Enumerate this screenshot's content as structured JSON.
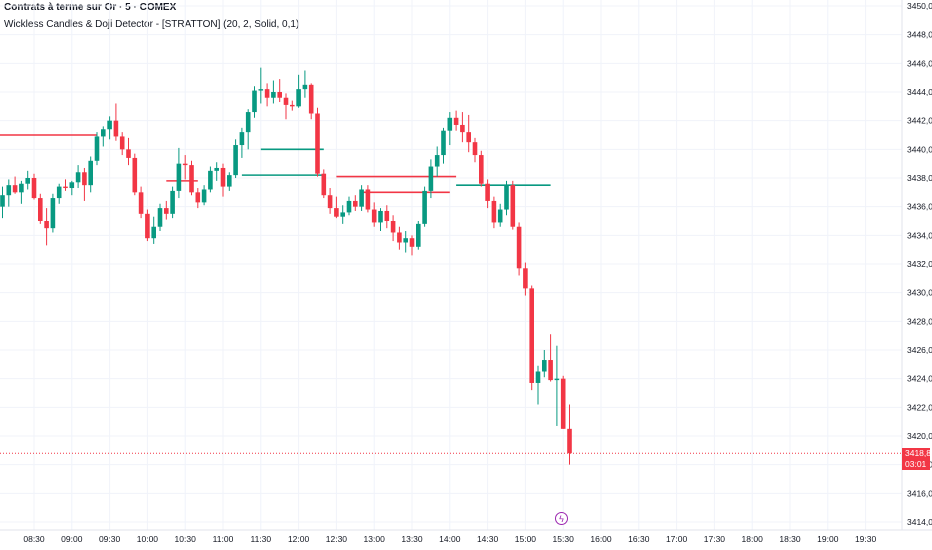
{
  "header": {
    "title": "Contrats à terme sur Or · 5 · COMEX",
    "indicator": "Wickless Candles & Doji Detector - [STRATTON] (20, 2, Solid, 0,1)"
  },
  "price_tag": {
    "price": "3418,8",
    "countdown": "03:01"
  },
  "event_icon": "lightning-icon",
  "colors": {
    "up": "#089981",
    "down": "#f23645",
    "grid": "#f0f3fa",
    "axis_text": "#131722",
    "current_line": "#f23645"
  },
  "chart_data": {
    "type": "candlestick",
    "title": "",
    "interval": "5",
    "x_ticks": [
      "08:30",
      "09:00",
      "09:30",
      "10:00",
      "10:30",
      "11:00",
      "11:30",
      "12:00",
      "12:30",
      "13:00",
      "13:30",
      "14:00",
      "14:30",
      "15:00",
      "15:30",
      "16:00",
      "16:30",
      "17:00",
      "17:30",
      "18:00",
      "18:30",
      "19:00",
      "19:30"
    ],
    "y_ticks": [
      "3450,0",
      "3448,0",
      "3446,0",
      "3444,0",
      "3442,0",
      "3440,0",
      "3438,0",
      "3436,0",
      "3434,0",
      "3432,0",
      "3430,0",
      "3428,0",
      "3426,0",
      "3424,0",
      "3422,0",
      "3420,0",
      "3418,0",
      "3416,0",
      "3414,0"
    ],
    "ylim": [
      3414.0,
      3450.0
    ],
    "current_price": 3418.8,
    "first_bar_time": "08:05",
    "candles": [
      [
        3436.0,
        3437.4,
        3435.2,
        3436.8
      ],
      [
        3436.8,
        3437.9,
        3436.0,
        3437.5
      ],
      [
        3437.5,
        3438.1,
        3436.9,
        3437.0
      ],
      [
        3437.0,
        3437.8,
        3436.2,
        3437.6
      ],
      [
        3437.6,
        3438.5,
        3437.2,
        3438.0
      ],
      [
        3438.0,
        3438.3,
        3436.5,
        3436.6
      ],
      [
        3436.6,
        3436.9,
        3434.8,
        3435.0
      ],
      [
        3435.0,
        3435.9,
        3433.3,
        3434.5
      ],
      [
        3434.5,
        3436.9,
        3434.2,
        3436.6
      ],
      [
        3436.6,
        3437.6,
        3436.2,
        3437.4
      ],
      [
        3437.4,
        3437.9,
        3437.1,
        3437.3
      ],
      [
        3437.3,
        3437.8,
        3436.8,
        3437.7
      ],
      [
        3437.7,
        3438.9,
        3437.3,
        3438.4
      ],
      [
        3438.4,
        3438.7,
        3436.4,
        3437.5
      ],
      [
        3437.5,
        3439.5,
        3437.0,
        3439.2
      ],
      [
        3439.2,
        3441.2,
        3438.9,
        3440.9
      ],
      [
        3440.9,
        3441.6,
        3440.2,
        3441.4
      ],
      [
        3441.4,
        3442.3,
        3440.7,
        3442.0
      ],
      [
        3442.0,
        3443.2,
        3440.6,
        3440.9
      ],
      [
        3440.9,
        3441.2,
        3439.6,
        3440.0
      ],
      [
        3440.0,
        3440.8,
        3438.9,
        3439.4
      ],
      [
        3439.4,
        3439.7,
        3436.8,
        3437.0
      ],
      [
        3437.0,
        3437.4,
        3435.2,
        3435.5
      ],
      [
        3435.5,
        3435.8,
        3433.6,
        3433.8
      ],
      [
        3433.8,
        3435.3,
        3433.4,
        3434.6
      ],
      [
        3434.6,
        3436.2,
        3434.3,
        3435.9
      ],
      [
        3435.9,
        3436.4,
        3435.1,
        3435.5
      ],
      [
        3435.5,
        3437.4,
        3435.2,
        3437.1
      ],
      [
        3437.1,
        3440.1,
        3436.6,
        3439.0
      ],
      [
        3439.0,
        3439.6,
        3437.9,
        3438.9
      ],
      [
        3438.9,
        3439.2,
        3436.8,
        3437.0
      ],
      [
        3437.0,
        3437.3,
        3435.9,
        3436.3
      ],
      [
        3436.3,
        3437.5,
        3436.1,
        3437.2
      ],
      [
        3437.2,
        3438.8,
        3437.0,
        3438.5
      ],
      [
        3438.5,
        3439.1,
        3437.8,
        3438.7
      ],
      [
        3438.7,
        3439.0,
        3436.7,
        3437.4
      ],
      [
        3437.4,
        3438.4,
        3437.1,
        3438.2
      ],
      [
        3438.2,
        3440.7,
        3438.0,
        3440.3
      ],
      [
        3440.3,
        3441.5,
        3439.4,
        3441.2
      ],
      [
        3441.2,
        3442.8,
        3440.0,
        3442.6
      ],
      [
        3442.6,
        3444.4,
        3442.2,
        3444.1
      ],
      [
        3444.1,
        3445.7,
        3443.2,
        3444.2
      ],
      [
        3444.2,
        3444.6,
        3443.0,
        3443.6
      ],
      [
        3443.6,
        3444.8,
        3443.2,
        3444.0
      ],
      [
        3444.0,
        3444.9,
        3443.3,
        3443.6
      ],
      [
        3443.6,
        3443.9,
        3442.1,
        3443.1
      ],
      [
        3443.1,
        3443.4,
        3442.7,
        3443.0
      ],
      [
        3443.0,
        3445.2,
        3442.9,
        3444.2
      ],
      [
        3444.2,
        3445.5,
        3443.6,
        3444.5
      ],
      [
        3444.5,
        3444.6,
        3442.1,
        3442.5
      ],
      [
        3442.5,
        3442.9,
        3438.1,
        3438.3
      ],
      [
        3438.3,
        3438.6,
        3436.6,
        3436.8
      ],
      [
        3436.8,
        3437.3,
        3435.5,
        3435.9
      ],
      [
        3435.9,
        3436.7,
        3435.2,
        3435.3
      ],
      [
        3435.3,
        3436.1,
        3434.8,
        3435.6
      ],
      [
        3435.6,
        3436.7,
        3435.4,
        3436.4
      ],
      [
        3436.4,
        3436.8,
        3435.7,
        3436.0
      ],
      [
        3436.0,
        3437.5,
        3435.7,
        3437.2
      ],
      [
        3437.2,
        3437.5,
        3435.6,
        3435.8
      ],
      [
        3435.8,
        3436.3,
        3434.6,
        3434.9
      ],
      [
        3434.9,
        3435.9,
        3434.3,
        3435.7
      ],
      [
        3435.7,
        3436.1,
        3434.5,
        3435.0
      ],
      [
        3435.0,
        3435.4,
        3433.6,
        3434.2
      ],
      [
        3434.2,
        3434.6,
        3433.0,
        3433.5
      ],
      [
        3433.5,
        3434.3,
        3432.8,
        3433.8
      ],
      [
        3433.8,
        3434.0,
        3432.6,
        3433.2
      ],
      [
        3433.2,
        3435.0,
        3433.0,
        3434.8
      ],
      [
        3434.8,
        3437.4,
        3434.6,
        3437.1
      ],
      [
        3437.1,
        3439.3,
        3436.6,
        3438.8
      ],
      [
        3438.8,
        3440.2,
        3438.1,
        3439.6
      ],
      [
        3439.6,
        3441.5,
        3439.0,
        3441.3
      ],
      [
        3441.3,
        3442.6,
        3440.3,
        3442.2
      ],
      [
        3442.2,
        3442.7,
        3441.3,
        3441.7
      ],
      [
        3441.7,
        3442.6,
        3440.5,
        3441.2
      ],
      [
        3441.2,
        3442.4,
        3439.8,
        3440.5
      ],
      [
        3440.5,
        3440.8,
        3439.1,
        3439.6
      ],
      [
        3439.6,
        3439.9,
        3437.4,
        3437.6
      ],
      [
        3437.6,
        3437.9,
        3435.9,
        3436.4
      ],
      [
        3436.4,
        3436.7,
        3434.5,
        3434.9
      ],
      [
        3434.9,
        3436.2,
        3434.6,
        3435.8
      ],
      [
        3435.8,
        3437.8,
        3435.4,
        3437.5
      ],
      [
        3437.5,
        3437.8,
        3434.4,
        3434.6
      ],
      [
        3434.6,
        3434.9,
        3431.2,
        3431.7
      ],
      [
        3431.7,
        3432.1,
        3429.8,
        3430.3
      ],
      [
        3430.3,
        3430.5,
        3423.2,
        3423.7
      ],
      [
        3423.7,
        3424.9,
        3422.2,
        3424.5
      ],
      [
        3424.5,
        3426.0,
        3424.1,
        3425.3
      ],
      [
        3425.3,
        3427.1,
        3423.8,
        3423.9
      ],
      [
        3423.9,
        3426.3,
        3420.7,
        3424.0
      ],
      [
        3424.0,
        3424.2,
        3420.5,
        3420.5
      ],
      [
        3420.5,
        3422.2,
        3418.0,
        3418.8
      ]
    ],
    "levels": [
      {
        "price": 3441.0,
        "color": "down",
        "from_bar": -1,
        "to_bar": 15
      },
      {
        "price": 3437.8,
        "color": "down",
        "from_bar": 26,
        "to_bar": 31
      },
      {
        "price": 3440.0,
        "color": "up",
        "from_bar": 41,
        "to_bar": 51
      },
      {
        "price": 3438.2,
        "color": "up",
        "from_bar": 38,
        "to_bar": 51
      },
      {
        "price": 3438.1,
        "color": "down",
        "from_bar": 53,
        "to_bar": 72
      },
      {
        "price": 3437.0,
        "color": "down",
        "from_bar": 57,
        "to_bar": 71
      },
      {
        "price": 3437.5,
        "color": "up",
        "from_bar": 72,
        "to_bar": 87
      }
    ]
  }
}
